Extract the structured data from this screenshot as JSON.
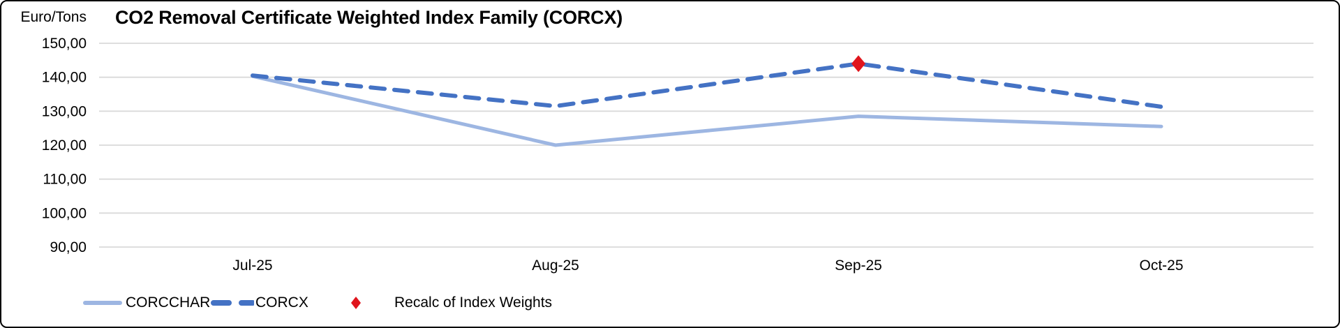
{
  "header": {
    "units_label": "Euro/Tons",
    "title": "CO2 Removal Certificate Weighted Index Family (CORCX)"
  },
  "chart_data": {
    "type": "line",
    "title": "CO2 Removal Certificate Weighted Index Family (CORCX)",
    "ylabel": "Euro/Tons",
    "xlabel": "",
    "categories": [
      "Jul-25",
      "Aug-25",
      "Sep-25",
      "Oct-25"
    ],
    "series": [
      {
        "name": "CORCCHAR",
        "style": "solid",
        "color": "#9DB6E2",
        "values": [
          140.3,
          120.0,
          128.5,
          125.5
        ]
      },
      {
        "name": "CORCX",
        "style": "dashed",
        "color": "#4472C4",
        "values": [
          140.5,
          131.5,
          144.0,
          131.3
        ]
      }
    ],
    "markers": [
      {
        "name": "Recalc of Index Weights",
        "shape": "diamond",
        "color": "#E0151D",
        "series": "CORCX",
        "category": "Sep-25",
        "value": 144.0
      }
    ],
    "ylim": [
      90,
      150
    ],
    "ytick_step": 10,
    "ytick_labels": [
      "150,00",
      "140,00",
      "130,00",
      "120,00",
      "110,00",
      "100,00",
      "90,00"
    ],
    "grid": true,
    "gridline_color": "#D9D9D9",
    "legend_position": "bottom-left"
  },
  "legend": {
    "item1": "CORCCHAR",
    "item2": "CORCX",
    "item3": "Recalc of Index Weights"
  }
}
